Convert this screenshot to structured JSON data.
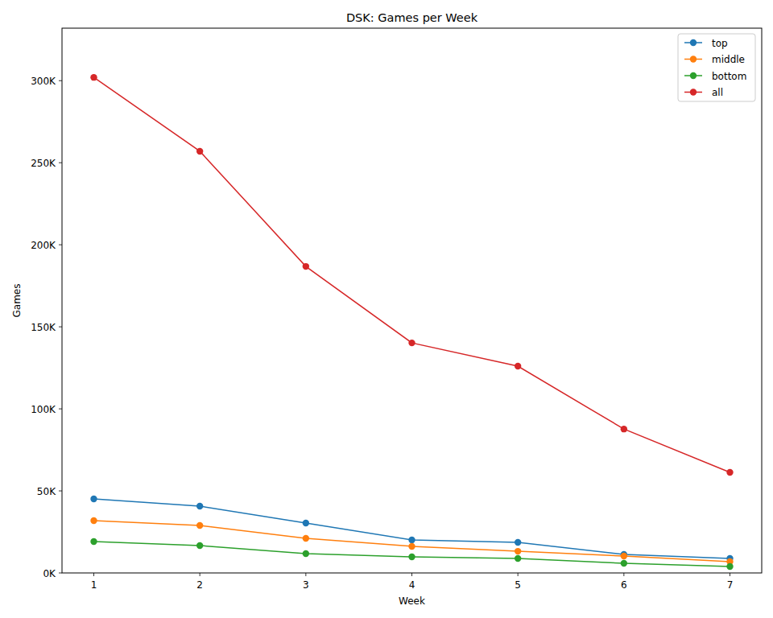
{
  "chart_data": {
    "type": "line",
    "title": "DSK: Games per Week",
    "x_label": "Week",
    "y_label": "Games",
    "x": [
      1,
      2,
      3,
      4,
      5,
      6,
      7
    ],
    "series": [
      {
        "name": "top",
        "color": "#1f77b4",
        "marker": "circle",
        "values": [
          45100,
          40700,
          30400,
          20100,
          18600,
          11300,
          8800
        ]
      },
      {
        "name": "middle",
        "color": "#ff7f0e",
        "marker": "circle",
        "values": [
          31900,
          28900,
          21100,
          16200,
          13200,
          10300,
          6900
        ]
      },
      {
        "name": "bottom",
        "color": "#2ca02c",
        "marker": "circle",
        "values": [
          19100,
          16700,
          11800,
          9800,
          8800,
          5900,
          3900
        ]
      },
      {
        "name": "all",
        "color": "#d62728",
        "marker": "circle",
        "values": [
          302000,
          257000,
          186800,
          140200,
          126000,
          87700,
          61300
        ]
      }
    ],
    "xlim": [
      0.7,
      7.3
    ],
    "xticks": [
      1,
      2,
      3,
      4,
      5,
      6,
      7
    ],
    "ylim": [
      0,
      332000
    ],
    "yticks": [
      {
        "value": 0,
        "label": "0K"
      },
      {
        "value": 50000,
        "label": "50K"
      },
      {
        "value": 100000,
        "label": "100K"
      },
      {
        "value": 150000,
        "label": "150K"
      },
      {
        "value": 200000,
        "label": "200K"
      },
      {
        "value": 250000,
        "label": "250K"
      },
      {
        "value": 300000,
        "label": "300K"
      }
    ],
    "grid": false,
    "legend": "upper right"
  }
}
